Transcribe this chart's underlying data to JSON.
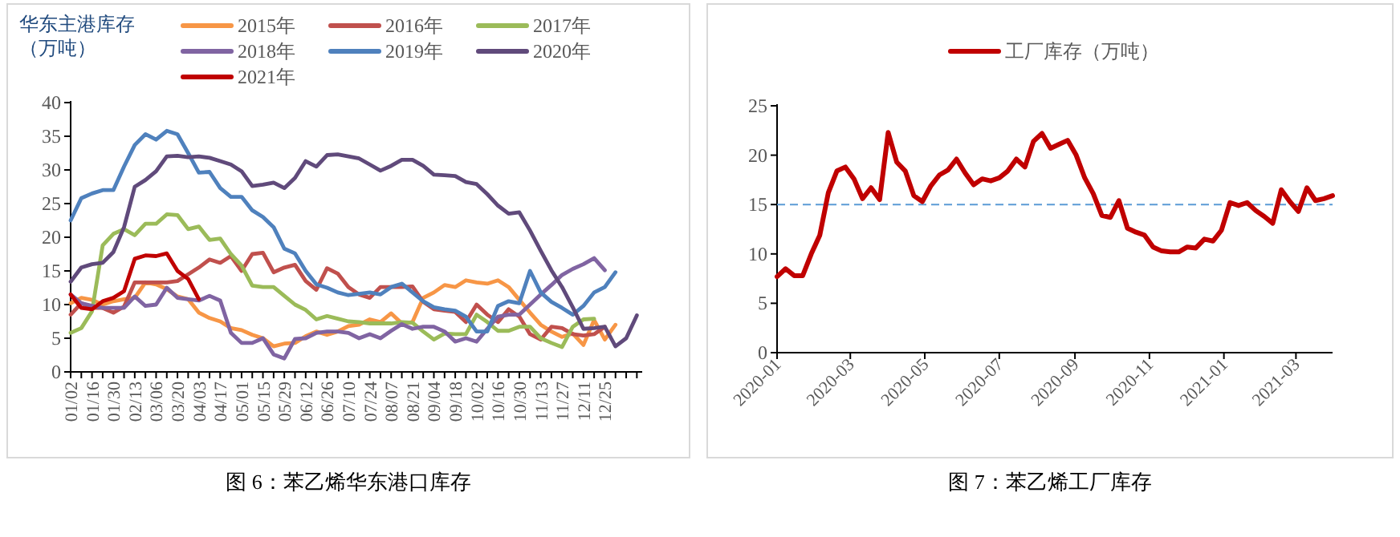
{
  "chart_data": [
    {
      "type": "line",
      "title": "图 6：苯乙烯华东港口库存",
      "ylabel": "华东主港库存（万吨）",
      "legend": "top",
      "ylim": [
        0,
        40
      ],
      "yticks": [
        0,
        5,
        10,
        15,
        20,
        25,
        30,
        35,
        40
      ],
      "categories": [
        "01/02",
        null,
        "01/16",
        null,
        "01/30",
        null,
        "02/13",
        null,
        "03/06",
        null,
        "03/20",
        null,
        "04/03",
        null,
        "04/17",
        null,
        "05/01",
        null,
        "05/15",
        null,
        "05/29",
        null,
        "06/12",
        null,
        "06/26",
        null,
        "07/10",
        null,
        "07/24",
        null,
        "08/07",
        null,
        "08/21",
        null,
        "09/04",
        null,
        "09/18",
        null,
        "10/02",
        null,
        "10/16",
        null,
        "10/30",
        null,
        "11/13",
        null,
        "11/27",
        null,
        "12/11",
        null,
        "12/25",
        null,
        null,
        null
      ],
      "series": [
        {
          "name": "2015年",
          "color": "#f79646",
          "values": [
            10.2,
            11.0,
            10.7,
            10.0,
            10.5,
            10.8,
            11.0,
            13.3,
            13.0,
            12.3,
            11.2,
            10.8,
            8.8,
            8.0,
            7.5,
            6.5,
            6.2,
            5.5,
            5.0,
            3.8,
            4.2,
            4.3,
            5.3,
            6.0,
            5.5,
            6.0,
            6.8,
            7.0,
            7.8,
            7.4,
            8.7,
            7.2,
            7.4,
            11.0,
            11.8,
            12.9,
            12.6,
            13.6,
            13.3,
            13.1,
            13.6,
            12.6,
            10.7,
            8.8,
            7.0,
            6.0,
            5.2,
            5.7,
            4.0,
            7.7,
            4.8,
            7.0,
            null,
            null
          ]
        },
        {
          "name": "2016年",
          "color": "#c0504d",
          "values": [
            8.5,
            10.2,
            9.5,
            9.5,
            8.8,
            9.7,
            13.3,
            13.3,
            13.3,
            13.3,
            13.5,
            14.5,
            15.5,
            16.7,
            16.2,
            17.2,
            15.0,
            17.5,
            17.7,
            14.8,
            15.5,
            15.9,
            13.5,
            12.2,
            15.4,
            14.6,
            12.6,
            11.5,
            11.0,
            12.6,
            12.6,
            12.6,
            12.7,
            10.4,
            9.3,
            9.1,
            8.9,
            7.4,
            10.0,
            8.5,
            7.4,
            9.3,
            8.2,
            5.6,
            4.8,
            6.7,
            6.5,
            5.6,
            5.4,
            5.6,
            6.7,
            null,
            null,
            null
          ]
        },
        {
          "name": "2017年",
          "color": "#9bbb59",
          "values": [
            5.8,
            6.5,
            9.0,
            18.8,
            20.5,
            21.2,
            20.3,
            22.0,
            22.0,
            23.4,
            23.3,
            21.2,
            21.6,
            19.6,
            19.8,
            17.5,
            15.8,
            12.8,
            12.6,
            12.6,
            11.3,
            10.0,
            9.2,
            7.8,
            8.3,
            7.9,
            7.5,
            7.4,
            7.2,
            7.2,
            7.2,
            7.4,
            7.3,
            6.0,
            4.8,
            5.7,
            5.6,
            5.6,
            8.5,
            7.4,
            6.1,
            6.1,
            6.7,
            6.7,
            5.0,
            4.3,
            3.7,
            6.7,
            7.8,
            7.9,
            null,
            null,
            null,
            null
          ]
        },
        {
          "name": "2018年",
          "color": "#8064a2",
          "values": [
            11.5,
            10.2,
            9.8,
            9.5,
            9.5,
            9.5,
            11.2,
            9.8,
            10.0,
            12.5,
            11.0,
            10.8,
            10.6,
            11.3,
            10.6,
            5.8,
            4.3,
            4.3,
            5.0,
            2.6,
            2.0,
            4.9,
            5.0,
            5.8,
            6.0,
            6.0,
            5.8,
            5.0,
            5.6,
            5.0,
            6.1,
            7.1,
            6.4,
            6.7,
            6.7,
            6.0,
            4.5,
            5.0,
            4.5,
            6.4,
            8.2,
            8.5,
            8.5,
            10.0,
            11.5,
            12.9,
            14.4,
            15.3,
            16.0,
            16.9,
            15.1,
            null,
            null,
            null
          ]
        },
        {
          "name": "2019年",
          "color": "#4f81bd",
          "values": [
            22.5,
            25.8,
            26.5,
            27.0,
            27.0,
            30.5,
            33.7,
            35.3,
            34.5,
            35.8,
            35.3,
            32.5,
            29.6,
            29.7,
            27.3,
            26.0,
            26.0,
            24.0,
            23.0,
            21.5,
            18.3,
            17.6,
            15.0,
            13.0,
            12.5,
            11.8,
            11.4,
            11.6,
            11.8,
            11.5,
            12.6,
            13.1,
            11.8,
            10.5,
            9.6,
            9.3,
            9.1,
            8.2,
            6.0,
            6.0,
            9.8,
            10.5,
            10.2,
            15.0,
            11.8,
            10.4,
            9.5,
            8.5,
            9.8,
            11.8,
            12.6,
            14.8,
            null,
            null
          ]
        },
        {
          "name": "2020年",
          "color": "#604a7b",
          "values": [
            13.4,
            15.5,
            16.0,
            16.2,
            17.8,
            21.5,
            27.5,
            28.5,
            29.8,
            32.0,
            32.1,
            31.9,
            32.0,
            31.8,
            31.3,
            30.8,
            29.8,
            27.6,
            27.8,
            28.1,
            27.3,
            28.8,
            31.3,
            30.5,
            32.2,
            32.3,
            32.0,
            31.7,
            30.8,
            29.9,
            30.6,
            31.5,
            31.5,
            30.6,
            29.3,
            29.2,
            29.1,
            28.2,
            27.9,
            26.4,
            24.7,
            23.5,
            23.7,
            21.0,
            18.0,
            15.1,
            12.6,
            9.6,
            6.4,
            6.5,
            6.7,
            3.8,
            5.0,
            8.4
          ]
        },
        {
          "name": "2021年",
          "color": "#c00000",
          "values": [
            11.5,
            9.5,
            9.3,
            10.5,
            11.0,
            12.0,
            16.8,
            17.3,
            17.2,
            17.6,
            15.0,
            13.8,
            10.8,
            null,
            null,
            null,
            null,
            null,
            null,
            null,
            null,
            null,
            null,
            null,
            null,
            null,
            null,
            null,
            null,
            null,
            null,
            null,
            null,
            null,
            null,
            null,
            null,
            null,
            null,
            null,
            null,
            null,
            null,
            null,
            null,
            null,
            null,
            null,
            null,
            null,
            null,
            null,
            null,
            null
          ]
        }
      ]
    },
    {
      "type": "line",
      "title": "图 7：苯乙烯工厂库存",
      "legend": "top",
      "ylim": [
        0,
        25
      ],
      "yticks": [
        0,
        5,
        10,
        15,
        20,
        25
      ],
      "xlim": [
        "2020-01-01",
        "2021-03-31"
      ],
      "xticks": [
        "2020-01",
        "2020-03",
        "2020-05",
        "2020-07",
        "2020-09",
        "2020-11",
        "2021-01",
        "2021-03"
      ],
      "x": [
        "2020-01-01",
        "2020-01-08",
        "2020-01-15",
        "2020-01-22",
        "2020-01-29",
        "2020-02-05",
        "2020-02-12",
        "2020-02-19",
        "2020-02-26",
        "2020-03-04",
        "2020-03-11",
        "2020-03-18",
        "2020-03-25",
        "2020-04-01",
        "2020-04-08",
        "2020-04-15",
        "2020-04-22",
        "2020-04-29",
        "2020-05-06",
        "2020-05-13",
        "2020-05-20",
        "2020-05-27",
        "2020-06-03",
        "2020-06-10",
        "2020-06-17",
        "2020-06-24",
        "2020-07-01",
        "2020-07-08",
        "2020-07-15",
        "2020-07-22",
        "2020-07-29",
        "2020-08-05",
        "2020-08-12",
        "2020-08-19",
        "2020-08-26",
        "2020-09-02",
        "2020-09-09",
        "2020-09-16",
        "2020-09-23",
        "2020-09-30",
        "2020-10-07",
        "2020-10-14",
        "2020-10-21",
        "2020-10-28",
        "2020-11-04",
        "2020-11-11",
        "2020-11-18",
        "2020-11-25",
        "2020-12-02",
        "2020-12-09",
        "2020-12-16",
        "2020-12-23",
        "2020-12-30",
        "2021-01-06",
        "2021-01-13",
        "2021-01-20",
        "2021-01-27",
        "2021-02-03",
        "2021-02-10",
        "2021-02-17",
        "2021-02-24",
        "2021-03-03",
        "2021-03-10",
        "2021-03-17",
        "2021-03-24",
        "2021-03-31"
      ],
      "series": [
        {
          "name": "工厂库存（万吨）",
          "color": "#c00000",
          "values": [
            7.7,
            8.5,
            7.8,
            7.8,
            10.0,
            11.9,
            16.2,
            18.4,
            18.8,
            17.6,
            15.6,
            16.7,
            15.5,
            22.3,
            19.3,
            18.4,
            15.9,
            15.3,
            16.9,
            18.0,
            18.5,
            19.6,
            18.2,
            17.0,
            17.6,
            17.4,
            17.7,
            18.4,
            19.6,
            18.8,
            21.4,
            22.2,
            20.7,
            21.1,
            21.5,
            20.0,
            17.7,
            16.1,
            13.9,
            13.7,
            15.4,
            12.6,
            12.2,
            11.9,
            10.7,
            10.3,
            10.2,
            10.2,
            10.7,
            10.6,
            11.5,
            11.3,
            12.4,
            15.2,
            14.9,
            15.2,
            14.4,
            13.8,
            13.1,
            16.5,
            15.3,
            14.3,
            16.7,
            15.4,
            15.6,
            15.9
          ]
        }
      ],
      "ref_lines": [
        {
          "axis": "y",
          "value": 15,
          "color": "#5b9bd5",
          "line_style": "dashed"
        }
      ]
    }
  ]
}
